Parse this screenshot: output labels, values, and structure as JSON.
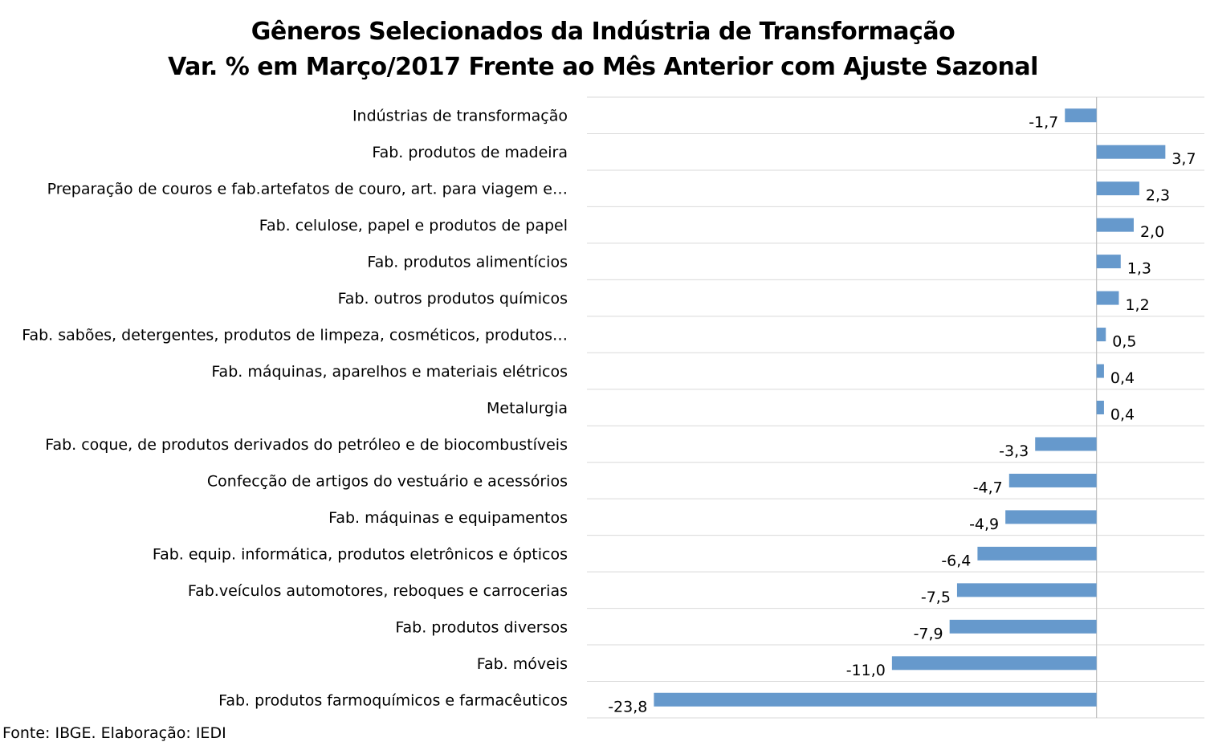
{
  "chart_data": {
    "type": "bar",
    "orientation": "horizontal",
    "title": "Gêneros Selecionados da Indústria de Transformação",
    "subtitle": "Var. % em Março/2017 Frente ao Mês Anterior com Ajuste Sazonal",
    "categories": [
      "Indústrias de transformação",
      "Fab. produtos de madeira",
      "Preparação de couros e fab.artefatos de couro, art. para viagem e…",
      "Fab. celulose, papel e produtos de papel",
      "Fab. produtos alimentícios",
      "Fab. outros produtos químicos",
      "Fab. sabões, detergentes, produtos de limpeza, cosméticos, produtos…",
      "Fab. máquinas, aparelhos e materiais elétricos",
      "Metalurgia",
      "Fab. coque, de produtos derivados do petróleo e de biocombustíveis",
      "Confecção de artigos do vestuário e acessórios",
      "Fab. máquinas e equipamentos",
      "Fab. equip. informática, produtos eletrônicos e ópticos",
      "Fab.veículos automotores, reboques e carrocerias",
      "Fab. produtos diversos",
      "Fab. móveis",
      "Fab. produtos farmoquímicos e farmacêuticos"
    ],
    "values": [
      -1.7,
      3.7,
      2.3,
      2.0,
      1.3,
      1.2,
      0.5,
      0.4,
      0.4,
      -3.3,
      -4.7,
      -4.9,
      -6.4,
      -7.5,
      -7.9,
      -11.0,
      -23.8
    ],
    "value_labels": [
      "-1,7",
      "3,7",
      "2,3",
      "2,0",
      "1,3",
      "1,2",
      "0,5",
      "0,4",
      "0,4",
      "-3,3",
      "-4,7",
      "-4,9",
      "-6,4",
      "-7,5",
      "-7,9",
      "-11,0",
      "-23,8"
    ],
    "xlim": [
      -27.4,
      5.8
    ],
    "bar_color": "#6699CC",
    "grid": true,
    "legend": "none"
  },
  "source": "Fonte: IBGE. Elaboração: IEDI"
}
